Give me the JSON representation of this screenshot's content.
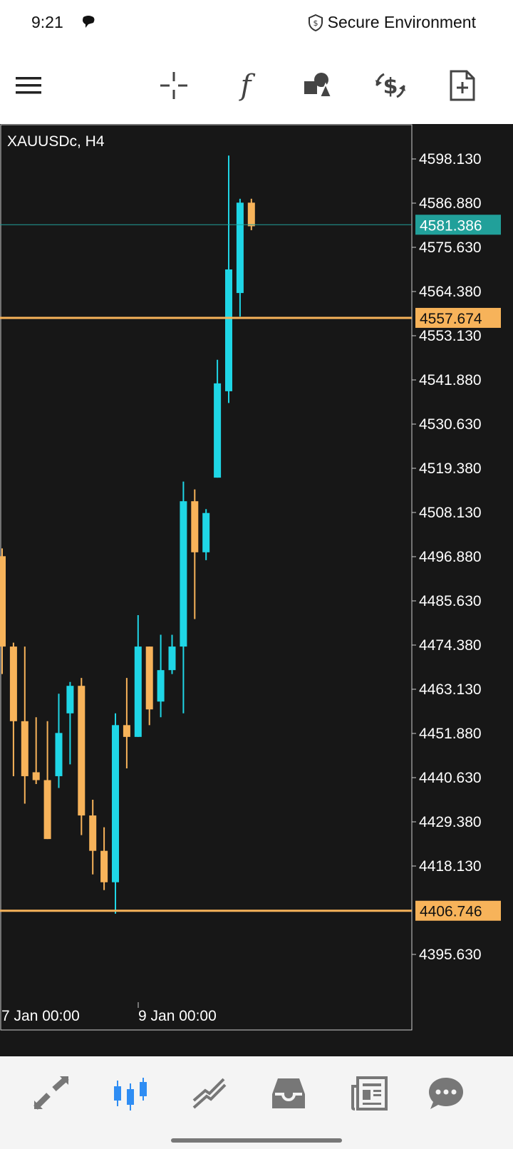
{
  "status_bar": {
    "time": "9:21",
    "secure_label": "Secure Environment"
  },
  "toolbar": {
    "icons": [
      "menu-icon",
      "crosshair-icon",
      "function-icon",
      "objects-icon",
      "trade-icon",
      "new-order-icon"
    ],
    "function_glyph": "f"
  },
  "chart": {
    "symbol_label": "XAUUSDc, H4",
    "price_lines": {
      "current": {
        "value": "4581.386",
        "color": "#21a09a"
      },
      "upper_line": {
        "value": "4557.674",
        "color": "#f7b35a"
      },
      "lower_line": {
        "value": "4406.746",
        "color": "#f7b35a"
      }
    },
    "x_labels": [
      "7 Jan 00:00",
      "9 Jan 00:00"
    ],
    "colors": {
      "bull": "#1fd6e6",
      "bear": "#f7b35a",
      "background": "#171717",
      "text": "#ffffff"
    }
  },
  "chart_data": {
    "type": "candlestick",
    "symbol": "XAUUSDc",
    "timeframe": "H4",
    "y_ticks": [
      4598.13,
      4586.88,
      4575.63,
      4564.38,
      4553.13,
      4541.88,
      4530.63,
      4519.38,
      4508.13,
      4496.88,
      4485.63,
      4474.38,
      4463.13,
      4451.88,
      4440.63,
      4429.38,
      4418.13,
      4395.63
    ],
    "y_tick_labels": [
      "4598.130",
      "4586.880",
      "4575.630",
      "4564.380",
      "4553.130",
      "4541.880",
      "4530.630",
      "4519.380",
      "4508.130",
      "4496.880",
      "4485.630",
      "4474.380",
      "4463.130",
      "4451.880",
      "4440.630",
      "4429.380",
      "4418.130",
      "4395.630"
    ],
    "ylim": [
      4386,
      4604
    ],
    "candles": [
      {
        "open": 4497,
        "high": 4499,
        "close": 4474,
        "low": 4467
      },
      {
        "open": 4474,
        "high": 4475,
        "close": 4455,
        "low": 4441
      },
      {
        "open": 4455,
        "high": 4474,
        "close": 4441,
        "low": 4434
      },
      {
        "open": 4442,
        "high": 4456,
        "close": 4440,
        "low": 4439
      },
      {
        "open": 4440,
        "high": 4455,
        "close": 4425,
        "low": 4425
      },
      {
        "open": 4441,
        "high": 4462,
        "close": 4452,
        "low": 4438
      },
      {
        "open": 4457,
        "high": 4465,
        "close": 4464,
        "low": 4444
      },
      {
        "open": 4464,
        "high": 4466,
        "close": 4431,
        "low": 4426
      },
      {
        "open": 4431,
        "high": 4435,
        "close": 4422,
        "low": 4416
      },
      {
        "open": 4422,
        "high": 4428,
        "close": 4414,
        "low": 4412
      },
      {
        "open": 4414,
        "high": 4457,
        "close": 4454,
        "low": 4406
      },
      {
        "open": 4454,
        "high": 4466,
        "close": 4451,
        "low": 4443
      },
      {
        "open": 4451,
        "high": 4482,
        "close": 4474,
        "low": 4451
      },
      {
        "open": 4474,
        "high": 4474,
        "close": 4458,
        "low": 4454
      },
      {
        "open": 4460,
        "high": 4477,
        "close": 4468,
        "low": 4456
      },
      {
        "open": 4468,
        "high": 4477,
        "close": 4474,
        "low": 4467
      },
      {
        "open": 4474,
        "high": 4516,
        "close": 4511,
        "low": 4457
      },
      {
        "open": 4511,
        "high": 4514,
        "close": 4498,
        "low": 4481
      },
      {
        "open": 4498,
        "high": 4509,
        "close": 4508,
        "low": 4496
      },
      {
        "open": 4517,
        "high": 4547,
        "close": 4541,
        "low": 4517
      },
      {
        "open": 4539,
        "high": 4599,
        "close": 4570,
        "low": 4536
      },
      {
        "open": 4564,
        "high": 4588,
        "close": 4587,
        "low": 4558
      },
      {
        "open": 4587,
        "high": 4588,
        "close": 4581,
        "low": 4580
      }
    ],
    "horizontal_lines": [
      4581.386,
      4557.674,
      4406.746
    ],
    "x_tick_labels": [
      "7 Jan 00:00",
      "9 Jan 00:00"
    ],
    "grid": false,
    "legend": "none"
  },
  "bottom_nav": {
    "items": [
      "quotes-icon",
      "chart-icon",
      "trade-icon",
      "history-icon",
      "news-icon",
      "chat-icon"
    ],
    "active": "chart-icon"
  }
}
